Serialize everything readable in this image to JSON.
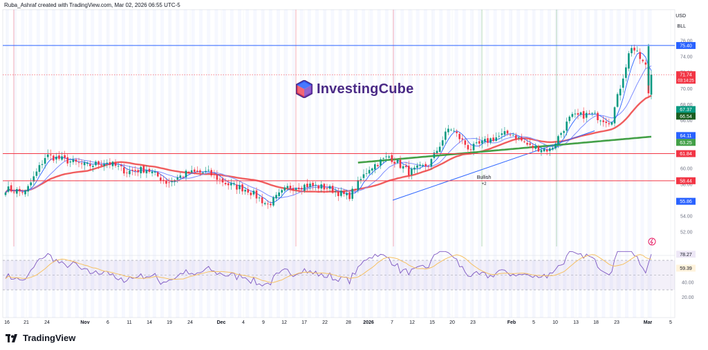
{
  "header": {
    "attribution": "Ruba_Ashraf created with TradingView.com, Mar 02, 2026 06:55 UTC-5"
  },
  "scale": {
    "currency": "USD",
    "unit": "BLL"
  },
  "watermark": {
    "brand_name": "InvestingCube"
  },
  "footer": {
    "brand": "TradingView"
  },
  "colors": {
    "up": "#089981",
    "down": "#f23645",
    "accent": "#2962ff",
    "ma_slow": "#f05d5e",
    "ma_long": "#43a047",
    "rsi": "#7e57c2",
    "rsi_ma": "#f6c060"
  },
  "chart_data": [
    {
      "type": "candlestick",
      "panel": "price",
      "title": "",
      "y_range": [
        19,
        77
      ],
      "y_ticks": [
        "76.00",
        "74.00",
        "72.00",
        "70.00",
        "68.00",
        "66.00",
        "62.00",
        "60.00",
        "58.00",
        "56.00",
        "54.00",
        "52.00"
      ],
      "x_ticks": [
        "16",
        "21",
        "24",
        "Nov",
        "6",
        "11",
        "14",
        "19",
        "24",
        "Dec",
        "4",
        "9",
        "12",
        "17",
        "22",
        "28",
        "2026",
        "7",
        "12",
        "15",
        "20",
        "23",
        "Feb",
        "5",
        "10",
        "13",
        "18",
        "23",
        "Mar",
        "5"
      ],
      "approx_close_path": [
        {
          "x": "Oct 16",
          "close": 57.4
        },
        {
          "x": "Oct 21",
          "close": 57.0
        },
        {
          "x": "Oct 24",
          "close": 61.6
        },
        {
          "x": "Nov 3",
          "close": 61.0
        },
        {
          "x": "Nov 6",
          "close": 60.3
        },
        {
          "x": "Nov 11",
          "close": 60.8
        },
        {
          "x": "Nov 14",
          "close": 59.6
        },
        {
          "x": "Nov 19",
          "close": 59.9
        },
        {
          "x": "Nov 24",
          "close": 58.2
        },
        {
          "x": "Dec 1",
          "close": 59.4
        },
        {
          "x": "Dec 4",
          "close": 59.5
        },
        {
          "x": "Dec 9",
          "close": 58.0
        },
        {
          "x": "Dec 12",
          "close": 57.3
        },
        {
          "x": "Dec 16",
          "close": 55.4
        },
        {
          "x": "Dec 22",
          "close": 57.6
        },
        {
          "x": "Dec 28",
          "close": 57.9
        },
        {
          "x": "Jan 2",
          "close": 57.5
        },
        {
          "x": "Jan 7",
          "close": 56.4
        },
        {
          "x": "Jan 12",
          "close": 60.0
        },
        {
          "x": "Jan 14",
          "close": 61.5
        },
        {
          "x": "Jan 20",
          "close": 59.5
        },
        {
          "x": "Jan 23",
          "close": 60.5
        },
        {
          "x": "Jan 29",
          "close": 65.2
        },
        {
          "x": "Feb 2",
          "close": 62.4
        },
        {
          "x": "Feb 5",
          "close": 63.6
        },
        {
          "x": "Feb 10",
          "close": 64.5
        },
        {
          "x": "Feb 13",
          "close": 62.7
        },
        {
          "x": "Feb 18",
          "close": 62.3
        },
        {
          "x": "Feb 20",
          "close": 66.4
        },
        {
          "x": "Feb 23",
          "close": 66.8
        },
        {
          "x": "Feb 26",
          "close": 65.8
        },
        {
          "x": "Mar 1",
          "close": 75.4
        },
        {
          "x": "Mar 2",
          "close": 71.74
        }
      ],
      "horizontal_lines": [
        {
          "value": 75.4,
          "label": "75.40",
          "color": "#2962ff"
        },
        {
          "value": 61.84,
          "label": "61.84",
          "color": "#f23645"
        },
        {
          "value": 58.44,
          "label": "58.44",
          "color": "#f23645"
        }
      ],
      "price_labels": [
        {
          "value": 71.74,
          "label": "71.74",
          "color": "#f23645"
        },
        {
          "value": 67.37,
          "label": "67.37",
          "color": "#089981"
        },
        {
          "value": 66.54,
          "label": "66.54",
          "color": "#1b5e20"
        },
        {
          "value": 64.11,
          "label": "64.11",
          "color": "#2962ff"
        },
        {
          "value": 63.25,
          "label": "63.25",
          "color": "#43a047"
        },
        {
          "value": 55.86,
          "label": "55.86",
          "color": "#2962ff"
        }
      ],
      "countdown": "03:14:25",
      "annotation": {
        "text": "Bullish",
        "sub": "+2",
        "x": "Jan 23"
      }
    },
    {
      "type": "line",
      "panel": "RSI",
      "title": "",
      "y_ticks": [
        "40.00",
        "20.00"
      ],
      "bands": [
        30,
        50,
        70
      ],
      "last_values": [
        {
          "label": "78.27",
          "color": "#7e57c2"
        },
        {
          "label": "59.39",
          "color": "#f6c060"
        }
      ]
    }
  ]
}
